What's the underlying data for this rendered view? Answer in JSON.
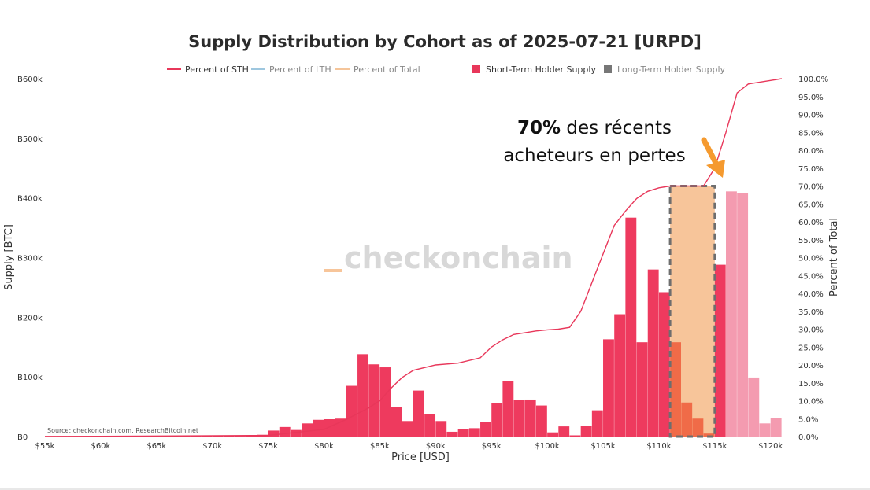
{
  "chart_data": {
    "type": "bar",
    "title": "Supply Distribution by Cohort as of 2025-07-21 [URPD]",
    "xlabel": "Price [USD]",
    "ylabel": "Supply [BTC]",
    "ylabel_right": "Percent of Total",
    "xlim": [
      55000,
      121500
    ],
    "ylim": [
      0,
      600000
    ],
    "ylim_right": [
      0,
      100
    ],
    "x_ticks": [
      "$55k",
      "$60k",
      "$65k",
      "$70k",
      "$75k",
      "$80k",
      "$85k",
      "$90k",
      "$95k",
      "$100k",
      "$105k",
      "$110k",
      "$115k",
      "$120k"
    ],
    "y_ticks": [
      "B0",
      "B100k",
      "B200k",
      "B300k",
      "B400k",
      "B500k",
      "B600k"
    ],
    "y_ticks_right": [
      "0.0%",
      "5.0%",
      "10.0%",
      "15.0%",
      "20.0%",
      "25.0%",
      "30.0%",
      "35.0%",
      "40.0%",
      "45.0%",
      "50.0%",
      "55.0%",
      "60.0%",
      "65.0%",
      "70.0%",
      "75.0%",
      "80.0%",
      "85.0%",
      "90.0%",
      "95.0%",
      "100.0%"
    ],
    "legend": [
      {
        "label": "Percent of STH",
        "kind": "line",
        "color": "#e8375a",
        "active": true
      },
      {
        "label": "Percent of LTH",
        "kind": "line",
        "color": "#9ec7df",
        "active": false
      },
      {
        "label": "Percent of Total",
        "kind": "line",
        "color": "#f5c59a",
        "active": false
      },
      {
        "label": "Short-Term Holder Supply",
        "kind": "bar",
        "color": "#e8375a",
        "active": true
      },
      {
        "label": "Long-Term Holder Supply",
        "kind": "bar",
        "color": "#777777",
        "active": false
      }
    ],
    "legend_position": "top",
    "bin_width": 1000,
    "series": [
      {
        "name": "Short-Term Holder Supply",
        "color": "#ee3a5e",
        "x": [
          55000,
          56000,
          57000,
          58000,
          59000,
          60000,
          61000,
          62000,
          63000,
          64000,
          65000,
          66000,
          67000,
          68000,
          69000,
          70000,
          71000,
          72000,
          73000,
          74000,
          75000,
          76000,
          77000,
          78000,
          79000,
          80000,
          81000,
          82000,
          83000,
          84000,
          85000,
          86000,
          87000,
          88000,
          89000,
          90000,
          91000,
          92000,
          93000,
          94000,
          95000,
          96000,
          97000,
          98000,
          99000,
          100000,
          101000,
          102000,
          103000,
          104000,
          105000,
          106000,
          107000,
          108000,
          109000,
          110000,
          111000,
          112000,
          113000,
          114000,
          115000
        ],
        "values": [
          1000,
          1000,
          1000,
          1000,
          1000,
          1000,
          1000,
          1000,
          1000,
          1000,
          1000,
          1000,
          1000,
          1000,
          1000,
          1000,
          1000,
          1000,
          2000,
          3000,
          10000,
          16000,
          11000,
          22000,
          28000,
          29000,
          30000,
          85000,
          138000,
          121000,
          116000,
          50000,
          26000,
          77000,
          38000,
          26000,
          8000,
          13000,
          14000,
          25000,
          56000,
          93000,
          61000,
          62000,
          52000,
          7000,
          17000,
          2000,
          18000,
          44000,
          163000,
          205000,
          367000,
          158000,
          280000,
          242000,
          158000,
          57000,
          30000,
          5000,
          288000
        ]
      },
      {
        "name": "Supply above price",
        "color": "#f49bb0",
        "x": [
          116000,
          117000,
          118000,
          119000,
          120000
        ],
        "values": [
          411000,
          408000,
          99000,
          22000,
          31000
        ]
      }
    ],
    "line": {
      "name": "Percent of STH",
      "color": "#e8375a",
      "x": [
        55000,
        75000,
        80000,
        82000,
        84000,
        85000,
        86000,
        87000,
        88000,
        90000,
        92000,
        94000,
        95000,
        96000,
        97000,
        98000,
        99000,
        100000,
        101000,
        102000,
        103000,
        104000,
        105000,
        106000,
        107000,
        108000,
        109000,
        110000,
        111000,
        112000,
        113000,
        114000,
        115000,
        116000,
        117000,
        118000,
        119000,
        120000,
        121000
      ],
      "values": [
        0,
        0.3,
        2.0,
        4.8,
        8.0,
        10.0,
        13.5,
        16.5,
        18.5,
        20.0,
        20.5,
        22.0,
        25.0,
        27.0,
        28.5,
        29.0,
        29.5,
        29.8,
        30.0,
        30.5,
        35.0,
        43.0,
        51.0,
        59.0,
        63.0,
        66.5,
        68.5,
        69.5,
        70.0,
        70.0,
        70.0,
        70.0,
        75.0,
        85.0,
        96.0,
        98.5,
        99.0,
        99.5,
        100.0
      ]
    },
    "highlight": {
      "x_start": 111000,
      "x_end": 115000,
      "y_percent": 70.0,
      "color": "#f7c59a"
    },
    "annotation": {
      "bold": "70%",
      "line1_rest": " des récents",
      "line2": "acheteurs en pertes",
      "arrow_color": "#f59a2f"
    },
    "source": "Source: checkonchain.com, ResearchBitcoin.net",
    "watermark": "_checkonchain"
  }
}
